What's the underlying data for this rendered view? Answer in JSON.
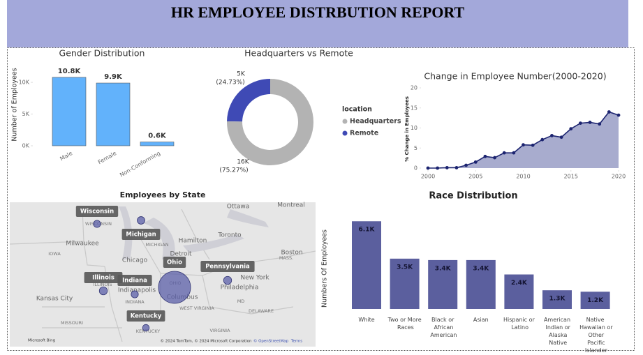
{
  "header": {
    "title": "HR EMPLOYEE DISTRBUTION REPORT"
  },
  "chart_data": [
    {
      "type": "bar",
      "title": "Gender Distribution",
      "ylabel": "Number of Employees",
      "categories": [
        "Male",
        "Female",
        "Non-Conforming"
      ],
      "values": [
        10800,
        9900,
        600
      ],
      "value_labels": [
        "10.8K",
        "9.9K",
        "0.6K"
      ],
      "color": "#62b2fb",
      "ylim": [
        0,
        11500
      ],
      "yticks": [
        {
          "value": 0,
          "label": "0K"
        },
        {
          "value": 5000,
          "label": "5K"
        },
        {
          "value": 10000,
          "label": "10K"
        }
      ]
    },
    {
      "type": "donut",
      "title": "Headquarters vs Remote",
      "legend_title": "location",
      "series": [
        {
          "name": "Headquarters",
          "color": "#b3b3b3"
        },
        {
          "name": "Remote",
          "color": "#3f4ab5"
        }
      ],
      "values": [
        75.27,
        24.73
      ],
      "value_labels": [
        "(75.27%)",
        "(24.73%)"
      ],
      "counts": [
        16000,
        5000
      ],
      "count_labels": [
        "16K",
        "5K"
      ]
    },
    {
      "type": "line",
      "title": "Change in Employee Number(2000-2020)",
      "ylabel": "% Change in Employees",
      "x": [
        2000,
        2001,
        2002,
        2003,
        2004,
        2005,
        2006,
        2007,
        2008,
        2009,
        2010,
        2011,
        2012,
        2013,
        2014,
        2015,
        2016,
        2017,
        2018,
        2019,
        2020
      ],
      "values": [
        0,
        0,
        0.1,
        0.1,
        0.7,
        1.5,
        2.9,
        2.6,
        3.8,
        3.8,
        5.8,
        5.7,
        7.1,
        8.1,
        7.7,
        9.8,
        11.2,
        11.4,
        11.0,
        14.0,
        13.2
      ],
      "color": "#1c2470",
      "area_color": "#9fa3c9",
      "xlim": [
        2000,
        2020
      ],
      "xticks": [
        2000,
        2005,
        2010,
        2015,
        2020
      ],
      "ylim": [
        0,
        20
      ],
      "yticks": [
        0,
        5,
        10,
        15,
        20
      ]
    },
    {
      "type": "bubble_map",
      "title": "Employees by State",
      "categories": [
        "Wisconsin",
        "Michigan",
        "Ohio",
        "Pennsylvania",
        "Illinois",
        "Indiana",
        "Kentucky"
      ],
      "sizes": [
        800,
        900,
        16000,
        1000,
        1000,
        800,
        700
      ],
      "color": "#5b5fa8",
      "place_labels": [
        "Ottawa",
        "Montreal",
        "Toronto",
        "Hamilton",
        "Milwaukee",
        "WISCONSIN",
        "MICHIGAN",
        "Detroit",
        "Chicago",
        "IOWA",
        "ILLINOIS",
        "INDIANA",
        "Indianapolis",
        "OHIO",
        "Columbus",
        "Kansas City",
        "MISSOURI",
        "WEST VIRGINIA",
        "KENTUCKY",
        "VIRGINIA",
        "New York",
        "Philadelphia",
        "MD",
        "DELAWARE",
        "MASS.",
        "Boston"
      ],
      "attribution": [
        "Microsoft Bing",
        "© 2024 TomTom, © 2024 Microsoft Corporation",
        "© OpenStreetMap",
        "Terms"
      ]
    },
    {
      "type": "bar",
      "title": "Race Distribution",
      "ylabel": "Numbers Of Employees",
      "categories": [
        "White",
        "Two or More Races",
        "Black or African American",
        "Asian",
        "Hispanic or Latino",
        "American Indian or Alaska Native",
        "Native Hawaiian or Other Pacific Islander"
      ],
      "values": [
        6100,
        3500,
        3400,
        3400,
        2400,
        1300,
        1200
      ],
      "value_labels": [
        "6.1K",
        "3.5K",
        "3.4K",
        "3.4K",
        "2.4K",
        "1.3K",
        "1.2K"
      ],
      "color": "#5b5f9e",
      "ylim": [
        0,
        6500
      ]
    }
  ]
}
